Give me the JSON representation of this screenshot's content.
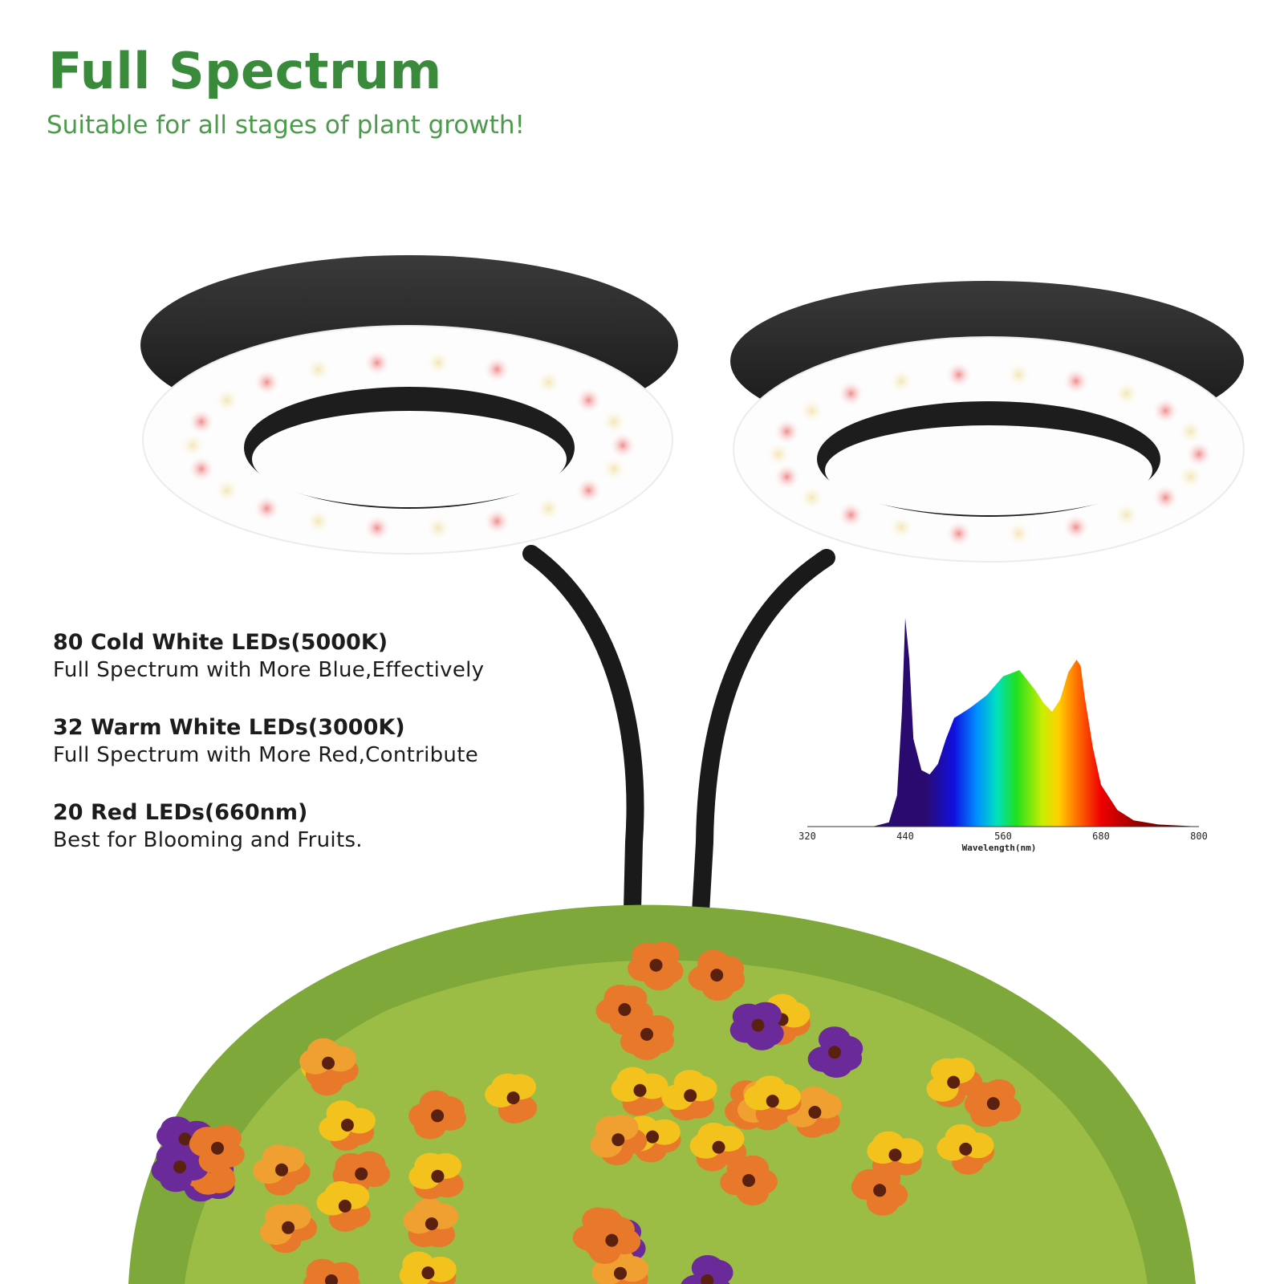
{
  "header": {
    "title": "Full Spectrum",
    "subtitle": "Suitable for all stages of plant growth!"
  },
  "features": [
    {
      "heading": "80 Cold White LEDs(5000K)",
      "description": "Full Spectrum with More Blue,Effectively"
    },
    {
      "heading": "32 Warm White LEDs(3000K)",
      "description": "Full Spectrum with More Red,Contribute"
    },
    {
      "heading": "20 Red LEDs(660nm)",
      "description": "Best for Blooming and Fruits."
    }
  ],
  "colors": {
    "title_green": "#3a8a3c",
    "lamp_body": "#1f1f1f",
    "led_red": "#f2a5a5",
    "led_warm": "#f6edc8"
  },
  "icons": [
    "ring-lamp-left",
    "ring-lamp-right",
    "gooseneck-arm",
    "pansy-flower-pot"
  ],
  "chart_data": {
    "type": "area",
    "xlabel": "Wavelength(nm)",
    "ylabel": "",
    "title": "",
    "xlim": [
      320,
      800
    ],
    "ylim": [
      0,
      1
    ],
    "x_ticks": [
      "320",
      "440",
      "560",
      "680",
      "800"
    ],
    "grid": false,
    "fill": "rainbow gradient by wavelength",
    "x": [
      400,
      420,
      430,
      436,
      440,
      445,
      450,
      460,
      470,
      480,
      490,
      500,
      520,
      540,
      560,
      580,
      600,
      610,
      620,
      630,
      640,
      650,
      655,
      660,
      665,
      670,
      680,
      700,
      720,
      750,
      800
    ],
    "values": [
      0.0,
      0.02,
      0.15,
      0.55,
      1.0,
      0.8,
      0.42,
      0.27,
      0.25,
      0.3,
      0.42,
      0.52,
      0.57,
      0.63,
      0.72,
      0.75,
      0.65,
      0.59,
      0.55,
      0.61,
      0.74,
      0.8,
      0.77,
      0.62,
      0.5,
      0.38,
      0.2,
      0.08,
      0.03,
      0.01,
      0.0
    ]
  }
}
